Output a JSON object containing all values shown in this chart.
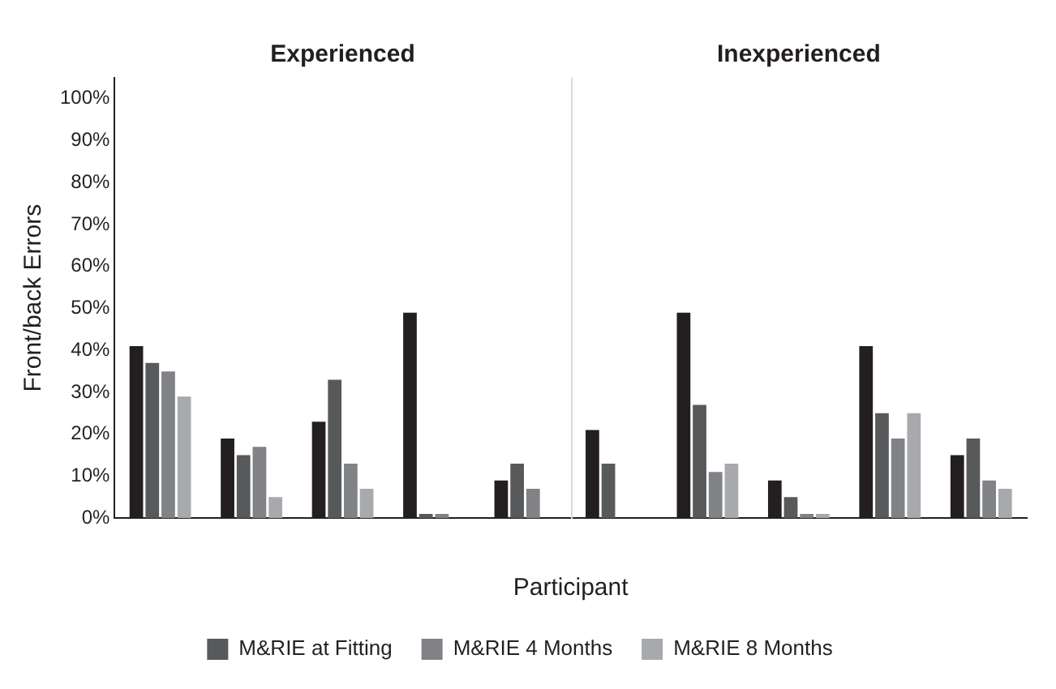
{
  "chart_data": {
    "type": "bar",
    "xlabel": "Participant",
    "ylabel": "Front/back Errors",
    "annotations": [
      "Experienced",
      "Inexperienced"
    ],
    "categories": [
      null,
      null,
      null,
      null,
      null,
      null,
      null,
      null,
      null,
      null
    ],
    "series": [
      {
        "color": "#231f20",
        "values": [
          41,
          19,
          23,
          49,
          9,
          21,
          49,
          9,
          41,
          15
        ]
      },
      {
        "name": "M&RIE at Fitting",
        "color": "#58595b",
        "values": [
          37,
          15,
          33,
          1,
          13,
          13,
          27,
          5,
          25,
          19
        ]
      },
      {
        "name": "M&RIE 4 Months",
        "color": "#808285",
        "values": [
          35,
          17,
          13,
          1,
          7,
          0,
          11,
          1,
          19,
          9
        ]
      },
      {
        "name": "M&RIE 8 Months",
        "color": "#a7a9ac",
        "values": [
          29,
          5,
          7,
          0,
          0,
          0,
          13,
          1,
          25,
          7
        ]
      }
    ],
    "ylim": [
      0,
      105
    ],
    "yticks": [
      {
        "value": 0,
        "label": "0%"
      },
      {
        "value": 10,
        "label": "10%"
      },
      {
        "value": 20,
        "label": "20%"
      },
      {
        "value": 30,
        "label": "30%"
      },
      {
        "value": 40,
        "label": "40%"
      },
      {
        "value": 50,
        "label": "50%"
      },
      {
        "value": 60,
        "label": "60%"
      },
      {
        "value": 70,
        "label": "70%"
      },
      {
        "value": 80,
        "label": "80%"
      },
      {
        "value": 90,
        "label": "90%"
      },
      {
        "value": 100,
        "label": "100%"
      }
    ],
    "grid": false,
    "legend": "bottom"
  }
}
